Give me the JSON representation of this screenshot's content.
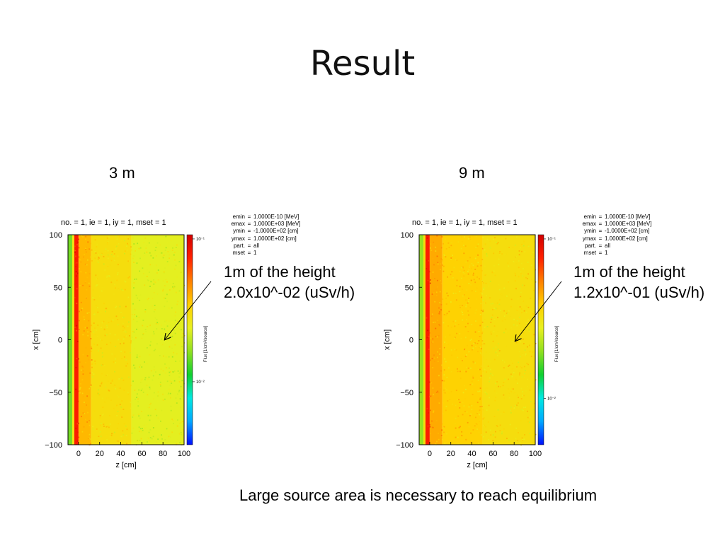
{
  "slide": {
    "title": "Result",
    "footer": "Large source area is necessary to reach equilibrium"
  },
  "colors": {
    "colormap": [
      "#0010ff",
      "#00a8ff",
      "#00e8e0",
      "#10d030",
      "#90e020",
      "#e8f020",
      "#ffd000",
      "#ff8000",
      "#ff2000",
      "#d00000"
    ],
    "arrow": "#000000"
  },
  "panels": [
    {
      "distance_label": "3 m",
      "plot_header": "no. =  1,  ie =  1,  iy =  1,  mset =  1",
      "params": [
        {
          "k": "emin",
          "v": "1.0000E-10 [MeV]"
        },
        {
          "k": "emax",
          "v": "1.0000E+03 [MeV]"
        },
        {
          "k": "ymin",
          "v": "-1.0000E+02 [cm]"
        },
        {
          "k": "ymax",
          "v": "1.0000E+02 [cm]"
        },
        {
          "k": "part.",
          "v": "all"
        },
        {
          "k": "mset",
          "v": "1"
        }
      ],
      "annotation": {
        "line1": "1m of the height",
        "line2": "2.0x10^-02 (uSv/h)"
      }
    },
    {
      "distance_label": "9 m",
      "plot_header": "no. =  1,  ie =  1,  iy =  1,  mset =  1",
      "params": [
        {
          "k": "emin",
          "v": "1.0000E-10 [MeV]"
        },
        {
          "k": "emax",
          "v": "1.0000E+03 [MeV]"
        },
        {
          "k": "ymin",
          "v": "-1.0000E+02 [cm]"
        },
        {
          "k": "ymax",
          "v": "1.0000E+02 [cm]"
        },
        {
          "k": "part.",
          "v": "all"
        },
        {
          "k": "mset",
          "v": "1"
        }
      ],
      "annotation": {
        "line1": "1m of the height",
        "line2": "1.2x10^-01 (uSv/h)"
      }
    }
  ],
  "chart_data": [
    {
      "type": "heatmap",
      "xlabel": "z [cm]",
      "ylabel": "x [cm]",
      "xlim": [
        -10,
        100
      ],
      "ylim": [
        -100,
        100
      ],
      "xticks": [
        "0",
        "20",
        "40",
        "60",
        "80",
        "100"
      ],
      "yticks": [
        "100",
        "50",
        "0",
        "−50",
        "−100"
      ],
      "colorbar_label": "Flux [1/cm²/source]",
      "colorbar_ticks": [
        "10⁻¹",
        "10⁻²"
      ],
      "colorbar_tick_positions": [
        0.02,
        0.7
      ],
      "field_zones": [
        {
          "z_range": [
            -10,
            -6
          ],
          "level": 0.42
        },
        {
          "z_range": [
            -6,
            -4
          ],
          "level": 0.6
        },
        {
          "z_range": [
            -4,
            0
          ],
          "level": 0.9
        },
        {
          "z_range": [
            0,
            12
          ],
          "level": 0.7
        },
        {
          "z_range": [
            12,
            50
          ],
          "level": 0.62
        },
        {
          "z_range": [
            50,
            100
          ],
          "level": 0.55
        }
      ]
    },
    {
      "type": "heatmap",
      "xlabel": "z [cm]",
      "ylabel": "x [cm]",
      "xlim": [
        -10,
        100
      ],
      "ylim": [
        -100,
        100
      ],
      "xticks": [
        "0",
        "20",
        "40",
        "60",
        "80",
        "100"
      ],
      "yticks": [
        "100",
        "50",
        "0",
        "−50",
        "−100"
      ],
      "colorbar_label": "Flux [1/cm²/source]",
      "colorbar_ticks": [
        "10⁻¹",
        "10⁻²"
      ],
      "colorbar_tick_positions": [
        0.02,
        0.78
      ],
      "field_zones": [
        {
          "z_range": [
            -10,
            -6
          ],
          "level": 0.45
        },
        {
          "z_range": [
            -6,
            -4
          ],
          "level": 0.62
        },
        {
          "z_range": [
            -4,
            0
          ],
          "level": 0.9
        },
        {
          "z_range": [
            0,
            12
          ],
          "level": 0.72
        },
        {
          "z_range": [
            12,
            50
          ],
          "level": 0.66
        },
        {
          "z_range": [
            50,
            100
          ],
          "level": 0.62
        }
      ]
    }
  ]
}
